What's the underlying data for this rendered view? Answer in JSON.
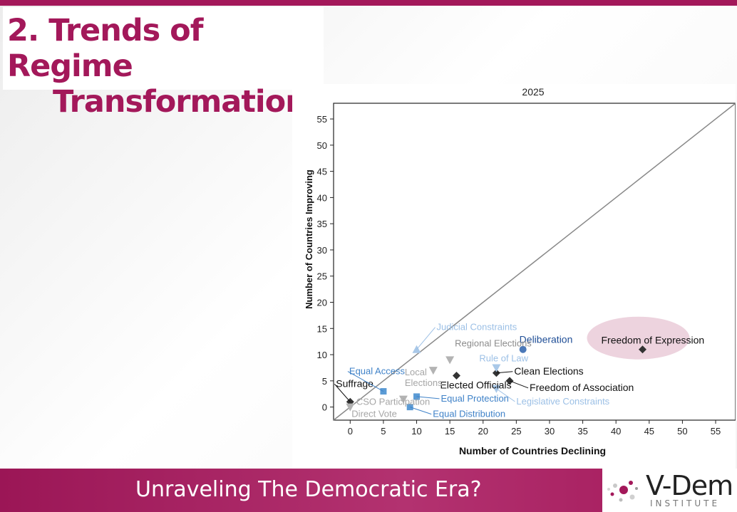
{
  "slide": {
    "title_line1": "2. Trends of Regime",
    "title_line2": "Transformation",
    "footer_text": "Unraveling The Democratic Era?",
    "logo_text": "V-Dem",
    "logo_subtext": "INSTITUTE",
    "colors": {
      "brand": "#a3185a",
      "dark": "#333333",
      "blue": "#3f82c8",
      "light_blue": "#a9c8e8",
      "gray": "#b3b3b3"
    }
  },
  "chart_data": {
    "type": "scatter",
    "title": "2025",
    "xlabel": "Number of Countries Declining",
    "ylabel": "Number of Countries Improving",
    "xlim": [
      -2.5,
      58
    ],
    "ylim": [
      -2.5,
      58
    ],
    "xticks": [
      0,
      5,
      10,
      15,
      20,
      25,
      30,
      35,
      40,
      45,
      50,
      55
    ],
    "yticks": [
      0,
      5,
      10,
      15,
      20,
      25,
      30,
      35,
      40,
      45,
      50,
      55
    ],
    "diagonal": true,
    "points": [
      {
        "label": "Freedom of Expression",
        "x": 44,
        "y": 11,
        "marker": "diamond",
        "color": "#333333",
        "label_color": "#111111",
        "highlight": true
      },
      {
        "label": "Deliberation",
        "x": 26,
        "y": 11,
        "marker": "circle",
        "color": "#4a78b8",
        "label_color": "#1f4e96"
      },
      {
        "label": "Clean Elections",
        "x": 22,
        "y": 6.5,
        "marker": "diamond",
        "color": "#333333",
        "label_color": "#111111"
      },
      {
        "label": "Freedom of Association",
        "x": 24,
        "y": 5,
        "marker": "diamond",
        "color": "#333333",
        "label_color": "#111111"
      },
      {
        "label": "Elected Officials",
        "x": 16,
        "y": 6,
        "marker": "diamond",
        "color": "#333333",
        "label_color": "#111111"
      },
      {
        "label": "Suffrage",
        "x": 0,
        "y": 1,
        "marker": "diamond",
        "color": "#333333",
        "label_color": "#111111"
      },
      {
        "label": "Rule of Law",
        "x": 22,
        "y": 7.5,
        "marker": "triangle-down",
        "color": "#a9c8e8",
        "label_color": "#9cc0e6"
      },
      {
        "label": "Judicial Constraints",
        "x": 10,
        "y": 11,
        "marker": "triangle-up",
        "color": "#a9c8e8",
        "label_color": "#9cc0e6"
      },
      {
        "label": "Legislative Constraints",
        "x": 22,
        "y": 3.5,
        "marker": "triangle-down",
        "color": "#a9c8e8",
        "label_color": "#9cc0e6"
      },
      {
        "label": "Regional Elections",
        "x": 15,
        "y": 9,
        "marker": "triangle-down",
        "color": "#b3b3b3",
        "label_color": "#8c8c8c"
      },
      {
        "label": "Local Elections",
        "x": 12.5,
        "y": 7,
        "marker": "triangle-down",
        "color": "#b3b3b3",
        "label_color": "#a6a6a6"
      },
      {
        "label": "CSO Participation",
        "x": 8,
        "y": 1.5,
        "marker": "triangle-down",
        "color": "#b3b3b3",
        "label_color": "#a6a6a6"
      },
      {
        "label": "Direct Vote",
        "x": 0,
        "y": 0,
        "marker": "triangle-down",
        "color": "#b3b3b3",
        "label_color": "#a6a6a6"
      },
      {
        "label": "Equal Access",
        "x": 5,
        "y": 3,
        "marker": "square",
        "color": "#5b9bd5",
        "label_color": "#3f82c8"
      },
      {
        "label": "Equal Protection",
        "x": 10,
        "y": 2,
        "marker": "square",
        "color": "#5b9bd5",
        "label_color": "#3f82c8"
      },
      {
        "label": "Equal Distribution",
        "x": 9,
        "y": 0,
        "marker": "square",
        "color": "#5b9bd5",
        "label_color": "#3f82c8"
      }
    ]
  }
}
